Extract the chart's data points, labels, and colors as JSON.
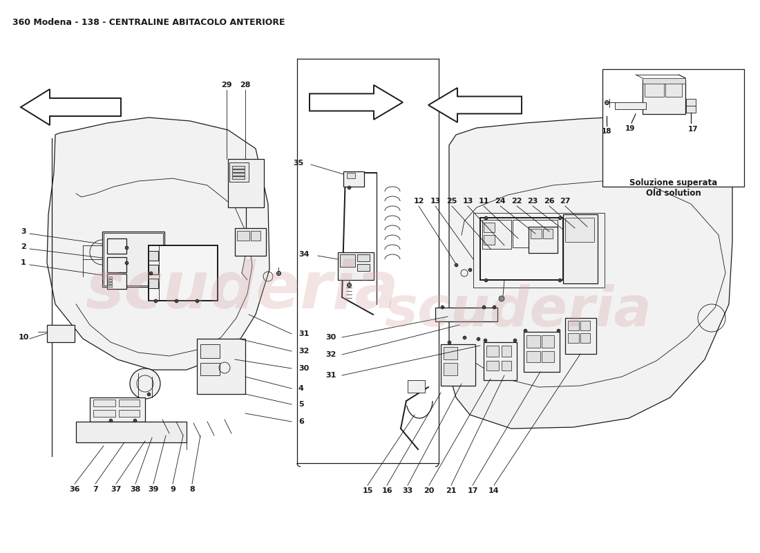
{
  "title": "360 Modena - 138 - CENTRALINE ABITACOLO ANTERIORE",
  "title_fontsize": 9,
  "background_color": "#ffffff",
  "line_color": "#1a1a1a",
  "watermark_text": "scuderia",
  "watermark_color": "#d4a0a0",
  "watermark_alpha": 0.28,
  "inset_label": "Soluzione superata\nOld solution"
}
